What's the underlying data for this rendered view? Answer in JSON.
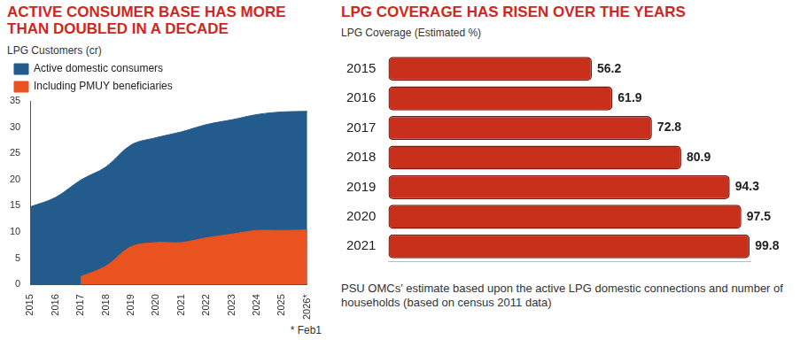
{
  "chart_data": [
    {
      "type": "area",
      "title": "ACTIVE CONSUMER BASE HAS MORE THAN DOUBLED IN A DECADE",
      "subtitle": "LPG Customers (cr)",
      "note": "* Feb1",
      "categories": [
        "2015",
        "2016",
        "2017",
        "2018",
        "2019",
        "2020",
        "2021",
        "2022",
        "2023",
        "2024",
        "2025",
        "2026*"
      ],
      "series": [
        {
          "name": "Active domestic consumers",
          "color": "#235b8c",
          "values": [
            14.8,
            16.6,
            19.9,
            22.4,
            26.6,
            28.0,
            29.1,
            30.5,
            31.4,
            32.4,
            32.9,
            33.0
          ]
        },
        {
          "name": "Including PMUY beneficiaries",
          "color": "#e8531f",
          "values": [
            null,
            null,
            1.5,
            3.5,
            7.2,
            8.0,
            8.0,
            8.9,
            9.6,
            10.3,
            10.3,
            10.4
          ]
        }
      ],
      "ylim": [
        0,
        35
      ],
      "yticks": [
        0,
        5,
        10,
        15,
        20,
        25,
        30,
        35
      ],
      "grid": false,
      "legend": "top left"
    },
    {
      "type": "bar",
      "orientation": "horizontal",
      "title": "LPG COVERAGE HAS RISEN OVER THE YEARS",
      "subtitle": "LPG Coverage (Estimated %)",
      "note": "PSU OMCs' estimate based upon the active LPG domestic connections and number of households (based on census 2011 data)",
      "categories": [
        "2015",
        "2016",
        "2017",
        "2018",
        "2019",
        "2020",
        "2021"
      ],
      "values": [
        56.2,
        61.9,
        72.8,
        80.9,
        94.3,
        97.5,
        99.8
      ],
      "color": "#c9301c",
      "xlim": [
        0,
        100
      ],
      "data_labels": true,
      "tick_labels": "y",
      "grid": false
    }
  ]
}
